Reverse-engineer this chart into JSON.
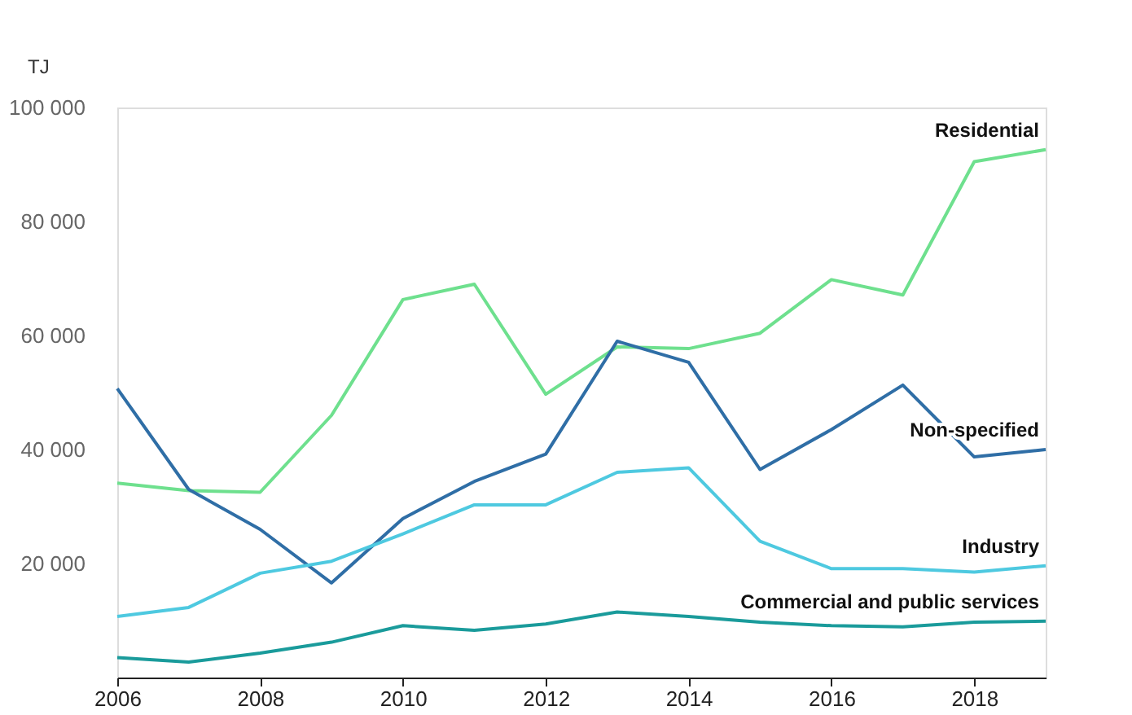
{
  "chart_data": {
    "type": "line",
    "ylabel": "TJ",
    "x": [
      2006,
      2007,
      2008,
      2009,
      2010,
      2011,
      2012,
      2013,
      2014,
      2015,
      2016,
      2017,
      2018,
      2019
    ],
    "xlim": [
      2006,
      2019
    ],
    "xticks": [
      2006,
      2008,
      2010,
      2012,
      2014,
      2016,
      2018
    ],
    "ylim": [
      0,
      100000
    ],
    "yticks": [
      {
        "value": 20000,
        "label": "20 000"
      },
      {
        "value": 40000,
        "label": "40 000"
      },
      {
        "value": 60000,
        "label": "60 000"
      },
      {
        "value": 80000,
        "label": "80 000"
      },
      {
        "value": 100000,
        "label": "100 000"
      }
    ],
    "grid": false,
    "legend": false,
    "marker": "none",
    "line_style": "solid",
    "series": [
      {
        "name": "Residential",
        "color": "#6ee08e",
        "values": [
          34100,
          32800,
          32500,
          46000,
          66300,
          69000,
          49700,
          58000,
          57700,
          60400,
          69800,
          67100,
          90500,
          92600
        ]
      },
      {
        "name": "Non-specified",
        "color": "#2f6ea6",
        "values": [
          50700,
          33000,
          26000,
          16600,
          27900,
          34400,
          39200,
          59000,
          55300,
          36500,
          43500,
          51300,
          38700,
          40000
        ]
      },
      {
        "name": "Industry",
        "color": "#4ec9e0",
        "values": [
          10700,
          12300,
          18300,
          20400,
          25200,
          30300,
          30300,
          36000,
          36800,
          23900,
          19100,
          19100,
          18500,
          19600
        ]
      },
      {
        "name": "Commercial and public services",
        "color": "#1a9b9b",
        "values": [
          3500,
          2700,
          4300,
          6200,
          9100,
          8300,
          9400,
          11500,
          10700,
          9700,
          9100,
          8900,
          9700,
          9900
        ]
      }
    ]
  }
}
